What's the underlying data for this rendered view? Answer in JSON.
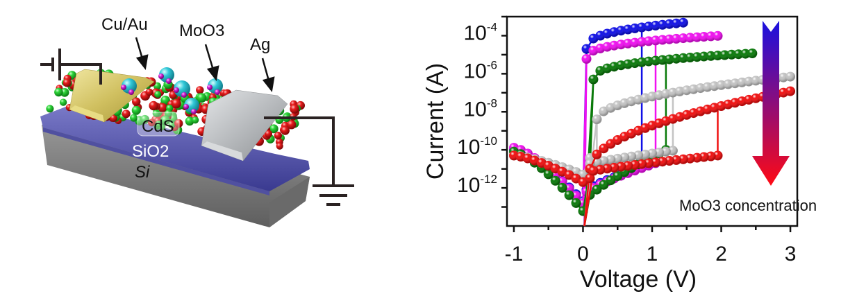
{
  "device": {
    "labels": {
      "electrode_left": "Cu/Au",
      "dopant": "MoO3",
      "electrode_right": "Ag",
      "channel": "CdS",
      "dielectric": "SiO2",
      "substrate": "Si"
    },
    "colors": {
      "cu_au": "#d8c96a",
      "ag": "#b9bcbe",
      "sio2": "#5a5aa8",
      "si": "#8a8a8a",
      "cd_atom": "#22c832",
      "s_atom": "#e01818",
      "moo3_mo": "#2ec8d8",
      "moo3_o": "#d020d0"
    }
  },
  "chart_data": {
    "type": "line",
    "title": "",
    "xlabel": "Voltage (V)",
    "ylabel": "Current (A)",
    "xlim": [
      -1.1,
      3.1
    ],
    "ylim": [
      1e-14,
      0.001
    ],
    "yscale": "log",
    "x_ticks": [
      -1,
      0,
      1,
      2,
      3
    ],
    "x_tick_labels": [
      "-1",
      "0",
      "1",
      "2",
      "3"
    ],
    "y_ticks": [
      0.0001,
      1e-06,
      1e-08,
      1e-10,
      1e-12
    ],
    "y_tick_labels": [
      {
        "base": "10",
        "exp": "-4"
      },
      {
        "base": "10",
        "exp": "-6"
      },
      {
        "base": "10",
        "exp": "-8"
      },
      {
        "base": "10",
        "exp": "-10"
      },
      {
        "base": "10",
        "exp": "-12"
      }
    ],
    "grid": false,
    "annotation": {
      "text": "MoO3 concentration",
      "arrow_direction": "down",
      "arrow_colors": [
        "#1a10e0",
        "#ff0a14"
      ]
    },
    "series": [
      {
        "name": "blue",
        "color": "#1010e6",
        "vmax": 1.5,
        "v_set": 0.05,
        "v_reset": 0.85,
        "off_left": 1e-10,
        "min_current": 2e-13,
        "on_start": 2e-05,
        "on_end": 0.0005,
        "off_right": 1.2e-11,
        "curve": "abrupt"
      },
      {
        "name": "magenta",
        "color": "#f010f0",
        "vmax": 2.0,
        "v_set": 0.05,
        "v_reset": 1.05,
        "off_left": 1.3e-10,
        "min_current": 1.5e-13,
        "on_start": 6e-06,
        "on_end": 0.0001,
        "off_right": 2e-11,
        "curve": "abrupt"
      },
      {
        "name": "green",
        "color": "#0a7a0a",
        "vmax": 2.5,
        "v_set": 0.15,
        "v_reset": 1.2,
        "off_left": 8e-11,
        "min_current": 6e-14,
        "on_start": 5e-07,
        "on_end": 1.2e-05,
        "off_right": 1e-10,
        "curve": "abrupt"
      },
      {
        "name": "gray",
        "color": "#c4c4c4",
        "vmax": 3.0,
        "v_set": 0.2,
        "v_reset": 1.3,
        "off_left": 5e-11,
        "min_current": 5e-12,
        "on_start": 4e-09,
        "on_end": 7e-07,
        "off_right": 9e-11,
        "curve": "gradual"
      },
      {
        "name": "red",
        "color": "#f01010",
        "vmax": 3.0,
        "v_set": 0.1,
        "v_reset": 1.95,
        "off_left": 5e-11,
        "min_current": 2e-12,
        "on_start": 1e-11,
        "on_end": 1.2e-07,
        "off_right": 5e-11,
        "curve": "gradual"
      }
    ]
  }
}
